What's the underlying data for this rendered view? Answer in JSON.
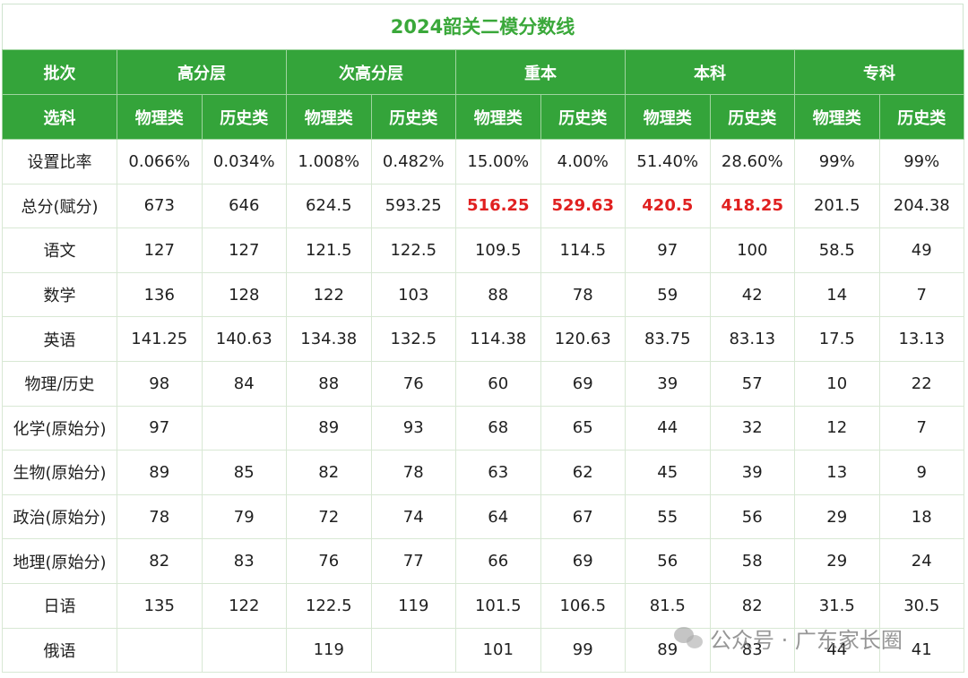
{
  "title": "2024韶关二模分数线",
  "header": {
    "batch_label": "批次",
    "groups": [
      "高分层",
      "次高分层",
      "重本",
      "本科",
      "专科"
    ],
    "subject_label": "选科",
    "subjects": [
      "物理类",
      "历史类",
      "物理类",
      "历史类",
      "物理类",
      "历史类",
      "物理类",
      "历史类",
      "物理类",
      "历史类"
    ]
  },
  "rows": [
    {
      "label": "设置比率",
      "cells": [
        "0.066%",
        "0.034%",
        "1.008%",
        "0.482%",
        "15.00%",
        "4.00%",
        "51.40%",
        "28.60%",
        "99%",
        "99%"
      ]
    },
    {
      "label": "总分(赋分)",
      "cells": [
        "673",
        "646",
        "624.5",
        "593.25",
        "516.25",
        "529.63",
        "420.5",
        "418.25",
        "201.5",
        "204.38"
      ]
    },
    {
      "label": "语文",
      "cells": [
        "127",
        "127",
        "121.5",
        "122.5",
        "109.5",
        "114.5",
        "97",
        "100",
        "58.5",
        "49"
      ]
    },
    {
      "label": "数学",
      "cells": [
        "136",
        "128",
        "122",
        "103",
        "88",
        "78",
        "59",
        "42",
        "14",
        "7"
      ]
    },
    {
      "label": "英语",
      "cells": [
        "141.25",
        "140.63",
        "134.38",
        "132.5",
        "114.38",
        "120.63",
        "83.75",
        "83.13",
        "17.5",
        "13.13"
      ]
    },
    {
      "label": "物理/历史",
      "cells": [
        "98",
        "84",
        "88",
        "76",
        "60",
        "69",
        "39",
        "57",
        "10",
        "22"
      ]
    },
    {
      "label": "化学(原始分)",
      "cells": [
        "97",
        "",
        "89",
        "93",
        "68",
        "65",
        "44",
        "32",
        "12",
        "7"
      ]
    },
    {
      "label": "生物(原始分)",
      "cells": [
        "89",
        "85",
        "82",
        "78",
        "63",
        "62",
        "45",
        "39",
        "13",
        "9"
      ]
    },
    {
      "label": "政治(原始分)",
      "cells": [
        "78",
        "79",
        "72",
        "74",
        "64",
        "67",
        "55",
        "56",
        "29",
        "18"
      ]
    },
    {
      "label": "地理(原始分)",
      "cells": [
        "82",
        "83",
        "76",
        "77",
        "66",
        "69",
        "56",
        "58",
        "29",
        "24"
      ]
    },
    {
      "label": "日语",
      "cells": [
        "135",
        "122",
        "122.5",
        "119",
        "101.5",
        "106.5",
        "81.5",
        "82",
        "31.5",
        "30.5"
      ]
    },
    {
      "label": "俄语",
      "cells": [
        "",
        "",
        "119",
        "",
        "101",
        "99",
        "89",
        "83",
        "44",
        "41"
      ]
    }
  ],
  "highlight": {
    "row": 1,
    "columns": [
      4,
      5,
      6,
      7
    ],
    "color": "#e02020"
  },
  "watermark": {
    "icon": "wechat-icon",
    "text": "公众号 · 广东家长圈"
  },
  "colors": {
    "header_bg": "#34a43a",
    "title": "#3aa83a"
  }
}
